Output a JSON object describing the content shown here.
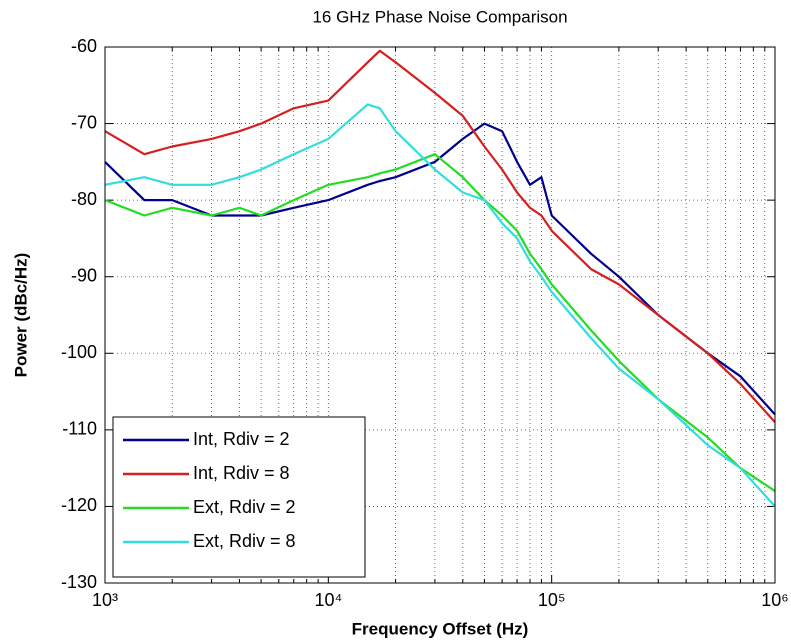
{
  "chart_data": {
    "type": "line",
    "title": "16 GHz Phase Noise Comparison",
    "xlabel": "Frequency Offset (Hz)",
    "ylabel": "Power (dBc/Hz)",
    "xscale": "log",
    "grid": true,
    "legend": "lower left",
    "x": [
      1000,
      1500,
      2000,
      3000,
      4000,
      5000,
      7000,
      10000,
      15000,
      17000,
      20000,
      30000,
      40000,
      50000,
      60000,
      70000,
      80000,
      90000,
      100000,
      150000,
      200000,
      300000,
      500000,
      700000,
      1000000
    ],
    "series": [
      {
        "name": "Int, Rdiv = 2",
        "color": "#00008f",
        "values": [
          -75,
          -80,
          -80,
          -82,
          -82,
          -82,
          -81,
          -80,
          -78,
          -77.5,
          -77,
          -75,
          -72,
          -70,
          -71,
          -75,
          -78,
          -77,
          -82,
          -87,
          -90,
          -95,
          -100,
          -103,
          -108
        ]
      },
      {
        "name": "Int, Rdiv = 8",
        "color": "#d42020",
        "values": [
          -71,
          -74,
          -73,
          -72,
          -71,
          -70,
          -68,
          -67,
          -62,
          -60.5,
          -62,
          -66,
          -69,
          -73,
          -76,
          -79,
          -81,
          -82,
          -84,
          -89,
          -91,
          -95,
          -100,
          -104,
          -109
        ]
      },
      {
        "name": "Ext, Rdiv = 2",
        "color": "#22dd22",
        "values": [
          -80,
          -82,
          -81,
          -82,
          -81,
          -82,
          -80,
          -78,
          -77,
          -76.5,
          -76,
          -74,
          -77,
          -80,
          -82,
          -84,
          -87,
          -89,
          -91,
          -97,
          -101,
          -106,
          -111,
          -115,
          -118
        ]
      },
      {
        "name": "Ext, Rdiv = 8",
        "color": "#33dddd",
        "values": [
          -78,
          -77,
          -78,
          -78,
          -77,
          -76,
          -74,
          -72,
          -67.5,
          -68,
          -71,
          -76,
          -79,
          -80,
          -83,
          -85,
          -88,
          -90,
          -92,
          -98,
          -102,
          -106,
          -112,
          -115,
          -120
        ]
      }
    ],
    "xlim": [
      1000,
      1000000
    ],
    "xticks": [
      {
        "value": 1000,
        "label": "10³"
      },
      {
        "value": 10000,
        "label": "10⁴"
      },
      {
        "value": 100000,
        "label": "10⁵"
      },
      {
        "value": 1000000,
        "label": "10⁶"
      }
    ],
    "ylim": [
      -130,
      -60
    ],
    "yticks": [
      -130,
      -120,
      -110,
      -100,
      -90,
      -80,
      -70,
      -60
    ]
  }
}
